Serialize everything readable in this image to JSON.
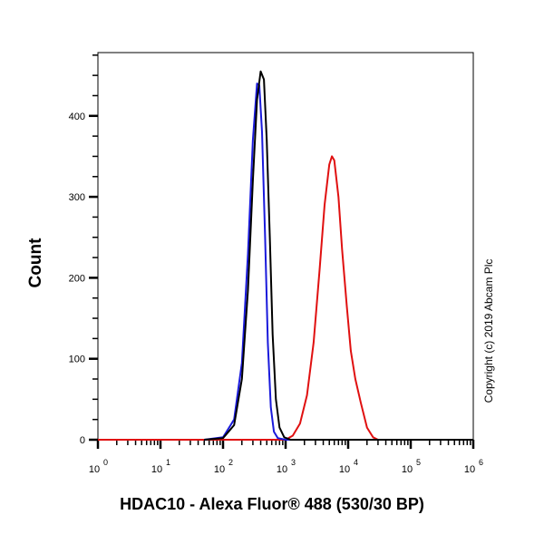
{
  "chart_data": {
    "type": "line",
    "title": "",
    "xlabel": "HDAC10 - Alexa Fluor® 488 (530/30 BP)",
    "ylabel": "Count",
    "x_scale": "log",
    "xlim": [
      1,
      1000000
    ],
    "ylim": [
      0,
      480
    ],
    "x_tick_labels": [
      "10^0",
      "10^1",
      "10^2",
      "10^3",
      "10^4",
      "10^5",
      "10^6"
    ],
    "y_tick_labels": [
      "0",
      "100",
      "200",
      "300",
      "400"
    ],
    "y_ticks": [
      0,
      100,
      200,
      300,
      400
    ],
    "grid": false,
    "legend": null,
    "series": [
      {
        "name": "blue histogram",
        "color": "#1a1adb",
        "x": [
          50,
          100,
          150,
          200,
          250,
          300,
          350,
          380,
          420,
          470,
          520,
          580,
          650,
          750,
          1000,
          10000,
          1000000
        ],
        "y": [
          0,
          3,
          25,
          95,
          230,
          370,
          440,
          438,
          380,
          250,
          120,
          40,
          10,
          2,
          0,
          0,
          0
        ]
      },
      {
        "name": "black histogram",
        "color": "#000000",
        "x": [
          50,
          100,
          150,
          200,
          250,
          300,
          350,
          400,
          450,
          500,
          560,
          620,
          700,
          800,
          950,
          1200,
          10000,
          1000000
        ],
        "y": [
          0,
          2,
          18,
          75,
          185,
          320,
          420,
          455,
          445,
          370,
          250,
          130,
          50,
          15,
          3,
          0,
          0,
          0
        ]
      },
      {
        "name": "red histogram",
        "color": "#e01010",
        "x": [
          1,
          1000,
          1300,
          1700,
          2200,
          2800,
          3500,
          4200,
          5000,
          5500,
          6000,
          7000,
          8000,
          9500,
          11000,
          13000,
          16000,
          20000,
          25000,
          30000,
          1000000
        ],
        "y": [
          0,
          0,
          5,
          20,
          55,
          120,
          210,
          290,
          340,
          350,
          345,
          300,
          235,
          165,
          110,
          75,
          45,
          15,
          3,
          0,
          0
        ]
      }
    ],
    "annotations": [
      "Copyright (c) 2019 Abcam Plc"
    ]
  },
  "axes": {
    "ylabel": "Count",
    "xlabel": "HDAC10 - Alexa Fluor® 488 (530/30 BP)"
  },
  "copyright": "Copyright (c) 2019 Abcam Plc"
}
